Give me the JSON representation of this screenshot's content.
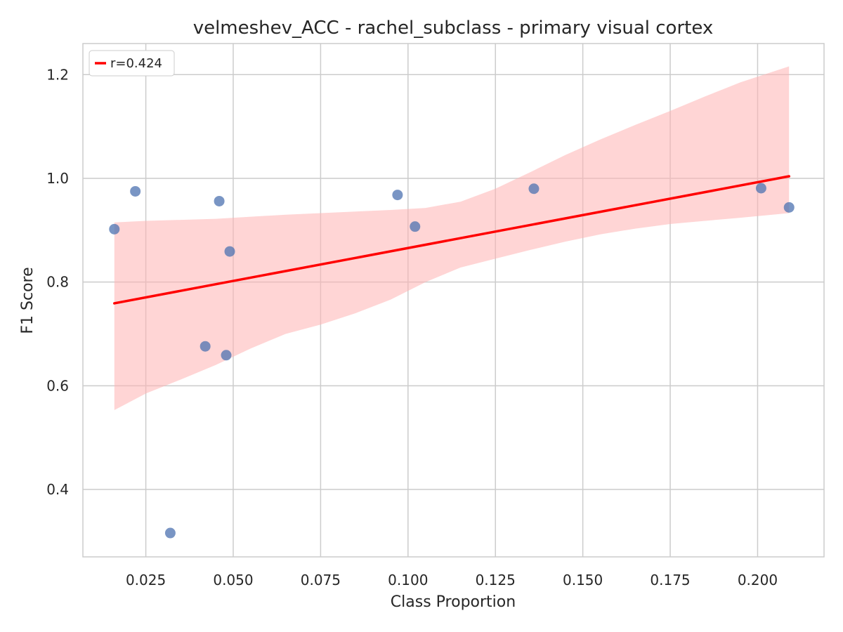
{
  "chart_data": {
    "type": "scatter",
    "title": "velmeshev_ACC - rachel_subclass - primary visual cortex",
    "xlabel": "Class Proportion",
    "ylabel": "F1 Score",
    "xlim": [
      0.007,
      0.219
    ],
    "ylim": [
      0.27,
      1.26
    ],
    "xticks": [
      0.025,
      0.05,
      0.075,
      0.1,
      0.125,
      0.15,
      0.175,
      0.2
    ],
    "xtick_labels": [
      "0.025",
      "0.050",
      "0.075",
      "0.100",
      "0.125",
      "0.150",
      "0.175",
      "0.200"
    ],
    "yticks": [
      0.4,
      0.6,
      0.8,
      1.0,
      1.2
    ],
    "ytick_labels": [
      "0.4",
      "0.6",
      "0.8",
      "1.0",
      "1.2"
    ],
    "grid": true,
    "legend_position": "top-left",
    "points": [
      {
        "x": 0.016,
        "y": 0.902
      },
      {
        "x": 0.022,
        "y": 0.975
      },
      {
        "x": 0.032,
        "y": 0.316
      },
      {
        "x": 0.042,
        "y": 0.676
      },
      {
        "x": 0.046,
        "y": 0.956
      },
      {
        "x": 0.048,
        "y": 0.659
      },
      {
        "x": 0.049,
        "y": 0.859
      },
      {
        "x": 0.097,
        "y": 0.968
      },
      {
        "x": 0.102,
        "y": 0.907
      },
      {
        "x": 0.136,
        "y": 0.98
      },
      {
        "x": 0.201,
        "y": 0.981
      },
      {
        "x": 0.209,
        "y": 0.944
      }
    ],
    "regression": {
      "label": "r=0.424",
      "x": [
        0.016,
        0.209
      ],
      "y": [
        0.759,
        1.004
      ]
    },
    "confidence_band": {
      "x": [
        0.016,
        0.025,
        0.035,
        0.045,
        0.055,
        0.065,
        0.075,
        0.085,
        0.095,
        0.105,
        0.115,
        0.125,
        0.135,
        0.145,
        0.155,
        0.165,
        0.175,
        0.185,
        0.195,
        0.209
      ],
      "lower": [
        0.553,
        0.585,
        0.612,
        0.64,
        0.672,
        0.7,
        0.718,
        0.74,
        0.766,
        0.8,
        0.828,
        0.845,
        0.862,
        0.878,
        0.892,
        0.903,
        0.912,
        0.918,
        0.924,
        0.933
      ],
      "upper": [
        0.915,
        0.918,
        0.92,
        0.922,
        0.926,
        0.93,
        0.933,
        0.936,
        0.939,
        0.943,
        0.955,
        0.98,
        1.012,
        1.045,
        1.075,
        1.103,
        1.13,
        1.158,
        1.185,
        1.216
      ]
    },
    "colors": {
      "points": "#4c72b0",
      "regression": "#ff0000",
      "band": "#ffb3b3",
      "grid": "#cccccc",
      "axes": "#cccccc"
    }
  }
}
